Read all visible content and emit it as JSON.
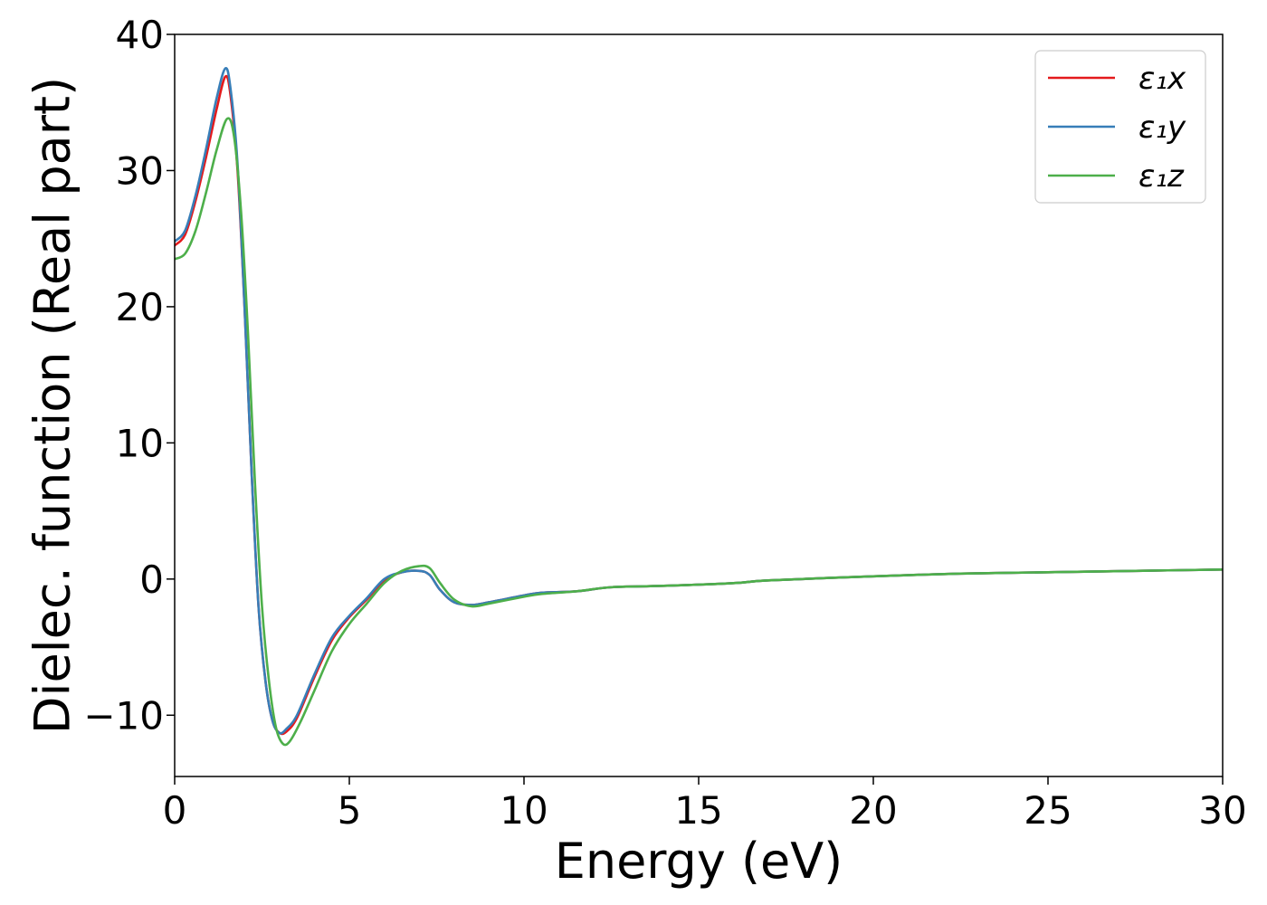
{
  "chart_data": {
    "type": "line",
    "xlabel": "Energy (eV)",
    "ylabel": "Dielec. function (Real part)",
    "xlim": [
      0,
      30
    ],
    "ylim": [
      -14.5,
      40
    ],
    "xticks": [
      0,
      5,
      10,
      15,
      20,
      25,
      30
    ],
    "xtick_labels": [
      "0",
      "5",
      "10",
      "15",
      "20",
      "25",
      "30"
    ],
    "yticks": [
      -10,
      0,
      10,
      20,
      30,
      40
    ],
    "ytick_labels": [
      "−10",
      "0",
      "10",
      "20",
      "30",
      "40"
    ],
    "grid": false,
    "legend_position": "top-right",
    "series": [
      {
        "name": "ε₁x",
        "color": "#e41a1c",
        "x": [
          0,
          0.3,
          0.6,
          0.9,
          1.2,
          1.45,
          1.6,
          1.8,
          2.0,
          2.2,
          2.4,
          2.6,
          2.8,
          3.0,
          3.2,
          3.5,
          4.0,
          4.5,
          5.0,
          5.5,
          6.0,
          6.5,
          7.0,
          7.3,
          7.6,
          8.0,
          8.5,
          9.0,
          10.0,
          10.5,
          11.5,
          12.5,
          14.0,
          16.0,
          17.0,
          20.0,
          22.5,
          25.0,
          27.5,
          30.0
        ],
        "y": [
          24.5,
          25.3,
          27.8,
          31.0,
          34.5,
          36.9,
          35.5,
          30.0,
          20.0,
          8.0,
          -2.0,
          -7.5,
          -10.4,
          -11.3,
          -11.2,
          -10.2,
          -7.2,
          -4.5,
          -2.8,
          -1.5,
          -0.1,
          0.5,
          0.6,
          0.3,
          -0.8,
          -1.7,
          -1.9,
          -1.7,
          -1.2,
          -1.0,
          -0.9,
          -0.6,
          -0.5,
          -0.3,
          -0.1,
          0.2,
          0.4,
          0.5,
          0.6,
          0.7
        ]
      },
      {
        "name": "ε₁y",
        "color": "#377eb8",
        "x": [
          0,
          0.3,
          0.6,
          0.9,
          1.2,
          1.45,
          1.6,
          1.8,
          2.0,
          2.2,
          2.4,
          2.6,
          2.8,
          3.0,
          3.2,
          3.5,
          4.0,
          4.5,
          5.0,
          5.5,
          6.0,
          6.5,
          7.0,
          7.3,
          7.6,
          8.0,
          8.5,
          9.0,
          10.0,
          10.5,
          11.5,
          12.5,
          14.0,
          16.0,
          17.0,
          20.0,
          22.5,
          25.0,
          27.5,
          30.0
        ],
        "y": [
          24.8,
          25.6,
          28.2,
          31.6,
          35.3,
          37.5,
          36.0,
          30.5,
          20.0,
          8.0,
          -2.0,
          -7.5,
          -10.4,
          -11.3,
          -11.0,
          -10.0,
          -7.0,
          -4.3,
          -2.7,
          -1.4,
          0.0,
          0.5,
          0.6,
          0.3,
          -0.8,
          -1.7,
          -1.9,
          -1.7,
          -1.2,
          -1.0,
          -0.9,
          -0.6,
          -0.5,
          -0.3,
          -0.1,
          0.2,
          0.4,
          0.5,
          0.6,
          0.7
        ]
      },
      {
        "name": "ε₁z",
        "color": "#4daf4a",
        "x": [
          0,
          0.3,
          0.6,
          0.9,
          1.2,
          1.5,
          1.7,
          1.9,
          2.1,
          2.3,
          2.5,
          2.7,
          2.9,
          3.1,
          3.3,
          3.6,
          4.0,
          4.5,
          5.0,
          5.5,
          6.0,
          6.5,
          7.0,
          7.3,
          7.6,
          8.0,
          8.5,
          9.0,
          10.0,
          10.5,
          11.5,
          12.5,
          14.0,
          16.0,
          17.0,
          20.0,
          22.5,
          25.0,
          27.5,
          30.0
        ],
        "y": [
          23.5,
          23.9,
          25.6,
          28.4,
          31.5,
          33.8,
          32.5,
          27.0,
          18.0,
          7.0,
          -2.0,
          -7.5,
          -10.9,
          -12.1,
          -11.9,
          -10.5,
          -8.2,
          -5.3,
          -3.3,
          -1.8,
          -0.3,
          0.6,
          0.95,
          0.8,
          -0.3,
          -1.5,
          -2.0,
          -1.8,
          -1.3,
          -1.1,
          -0.9,
          -0.6,
          -0.5,
          -0.3,
          -0.1,
          0.2,
          0.4,
          0.5,
          0.6,
          0.7
        ]
      }
    ]
  }
}
